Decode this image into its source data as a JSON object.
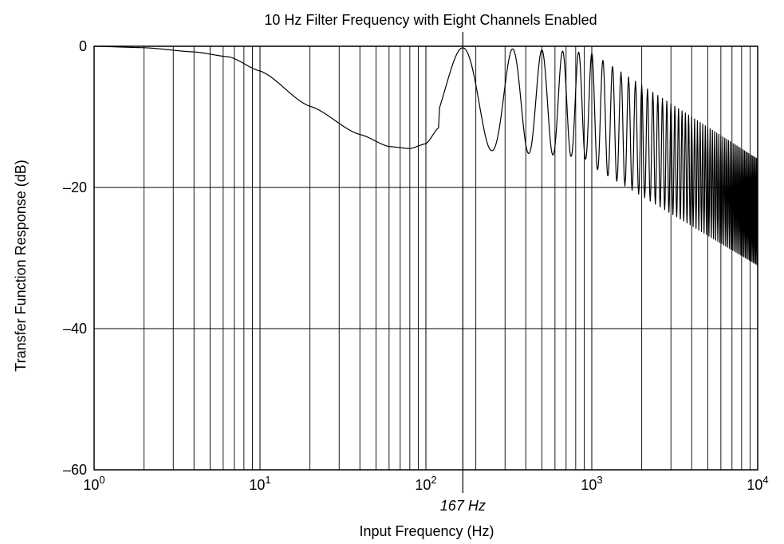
{
  "chart_data": {
    "type": "line",
    "title": "10 Hz Filter Frequency with Eight Channels Enabled",
    "xlabel": "Input Frequency (Hz)",
    "ylabel": "Transfer Function Response (dB)",
    "xscale": "log",
    "xlim": [
      1,
      10000
    ],
    "ylim": [
      -60,
      0
    ],
    "grid": true,
    "x_tick_labels": [
      {
        "base": "10",
        "exp": "0"
      },
      {
        "base": "10",
        "exp": "1"
      },
      {
        "base": "10",
        "exp": "2"
      },
      {
        "base": "10",
        "exp": "3"
      },
      {
        "base": "10",
        "exp": "4"
      }
    ],
    "y_ticks": [
      0,
      -20,
      -40,
      -60
    ],
    "y_tick_labels": [
      "0",
      "–20",
      "–40",
      "–60"
    ],
    "annotation": {
      "text": "167 Hz",
      "x": 167
    },
    "series": [
      {
        "base_points": [
          [
            1,
            0
          ],
          [
            2,
            -0.2
          ],
          [
            4,
            -0.8
          ],
          [
            6.5,
            -1.5
          ],
          [
            10,
            -3.5
          ],
          [
            20,
            -8.5
          ],
          [
            40,
            -12.5
          ],
          [
            60,
            -14.2
          ],
          [
            80,
            -14.5
          ],
          [
            100,
            -13.8
          ],
          [
            120,
            -11.5
          ],
          [
            145,
            -5
          ],
          [
            167,
            0
          ]
        ],
        "notch_frequencies": [
          83,
          250,
          417,
          583,
          750,
          917,
          1083,
          1250
        ],
        "peak_frequencies": [
          167,
          333,
          500,
          667,
          833,
          1000,
          1167
        ],
        "notch_depth_db": [
          -14.5,
          -14.8,
          -15.2,
          -15.4,
          -15.6,
          -16.0,
          -16.3,
          -16.6
        ],
        "high_freq_envelope": {
          "x": [
            1000,
            10000
          ],
          "peak_db": [
            -1,
            -16
          ],
          "notch_db": [
            -17,
            -31
          ]
        }
      }
    ]
  }
}
